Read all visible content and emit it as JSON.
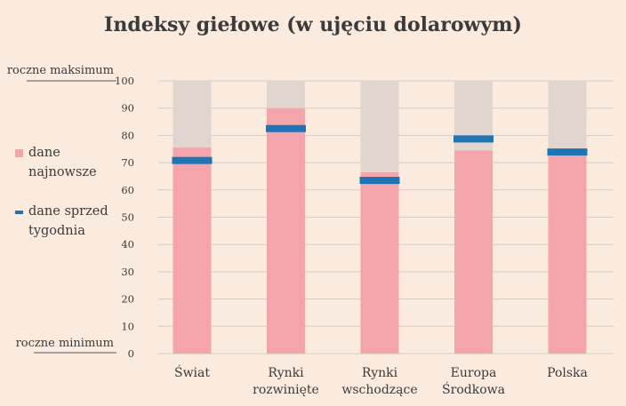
{
  "chart_data": {
    "type": "bar",
    "title": "Indeksy giełowe (w ujęciu dolarowym)",
    "categories": [
      [
        "Świat"
      ],
      [
        "Rynki",
        "rozwinięte"
      ],
      [
        "Rynki",
        "wschodzące"
      ],
      [
        "Europa",
        "Środkowa"
      ],
      [
        "Polska"
      ]
    ],
    "series": [
      {
        "name": "dane najnowsze",
        "kind": "bar",
        "values": [
          75.5,
          90,
          66.5,
          74.5,
          72.5
        ]
      },
      {
        "name": "dane sprzed tygodnia",
        "kind": "marker",
        "values": [
          70.8,
          82.5,
          63.5,
          78.7,
          73.9
        ]
      }
    ],
    "ylim": [
      0,
      100
    ],
    "yticks": [
      0,
      10,
      20,
      30,
      40,
      50,
      60,
      70,
      80,
      90,
      100
    ],
    "y_top_label": "roczne maksimum",
    "y_bottom_label": "roczne minimum",
    "legend": [
      {
        "lines": [
          "dane",
          "najnowsze"
        ],
        "color": "#f4a5ac",
        "marker": "square"
      },
      {
        "lines": [
          "dane sprzed",
          "tygodnia"
        ],
        "color": "#1f74b4",
        "marker": "dash"
      }
    ],
    "legend_position": "left",
    "grid": true,
    "colors": {
      "bar": "#f4a5ac",
      "bar_bg": "#e0d6cf",
      "marker": "#1f74b4",
      "grid": "#d4cbc5",
      "background": "#fbebdf"
    }
  }
}
